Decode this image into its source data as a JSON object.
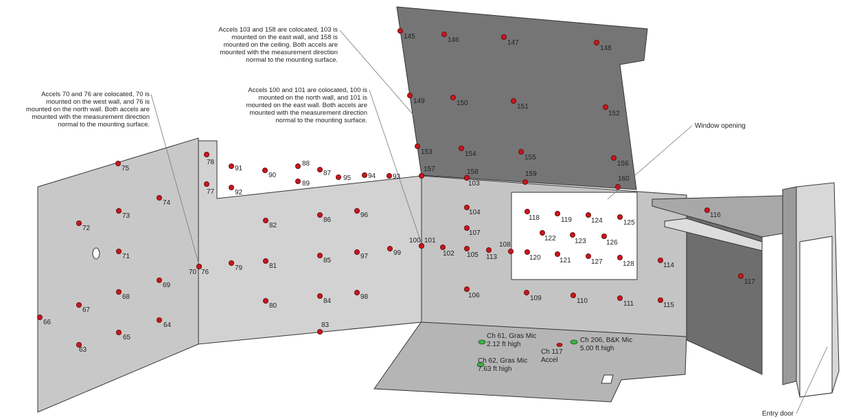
{
  "annotations": [
    {
      "lines": [
        "Accels 70 and 76 are colocated, 70 is",
        "mounted on the west wall, and 76 is",
        "mounted on the north wall.  Both accels are",
        "mounted with the measurement direction",
        "normal to the mounting surface."
      ]
    },
    {
      "lines": [
        "Accels 103 and 158 are colocated, 103 is",
        "mounted on the east wall, and 158 is",
        "mounted on the ceiling.  Both accels are",
        "mounted with the measurement direction",
        "normal to the mounting surface."
      ]
    },
    {
      "lines": [
        "Accels 100 and 101 are colocated, 100 is",
        "mounted on the north wall, and 101 is",
        "mounted on the east wall.  Both accels are",
        "mounted with the measurement direction",
        "normal to the mounting surface."
      ]
    }
  ],
  "labels": {
    "window_opening": "Window opening",
    "entry_door": "Entry door"
  },
  "instruments": [
    {
      "lines": [
        "Ch 61, Gras Mic",
        "2.12 ft high"
      ]
    },
    {
      "lines": [
        "Ch 62, Gras Mic",
        "7.63 ft high"
      ]
    },
    {
      "lines": [
        "Ch 117",
        "Accel"
      ]
    },
    {
      "lines": [
        "Ch 206, B&K Mic",
        "5.00 ft high"
      ]
    }
  ],
  "sensors": [
    "63",
    "64",
    "65",
    "66",
    "67",
    "68",
    "69",
    "70",
    "76",
    "71",
    "72",
    "73",
    "74",
    "75",
    "77",
    "78",
    "79",
    "80",
    "81",
    "82",
    "83",
    "84",
    "85",
    "86",
    "87",
    "88",
    "89",
    "90",
    "91",
    "92",
    "93",
    "94",
    "95",
    "96",
    "97",
    "98",
    "99",
    "100",
    "101",
    "102",
    "103",
    "158",
    "104",
    "105",
    "106",
    "107",
    "108",
    "109",
    "110",
    "111",
    "113",
    "114",
    "115",
    "116",
    "117",
    "118",
    "119",
    "120",
    "121",
    "122",
    "123",
    "124",
    "125",
    "126",
    "127",
    "128",
    "145",
    "146",
    "147",
    "148",
    "149",
    "150",
    "151",
    "152",
    "153",
    "154",
    "155",
    "156",
    "157",
    "159",
    "160"
  ]
}
